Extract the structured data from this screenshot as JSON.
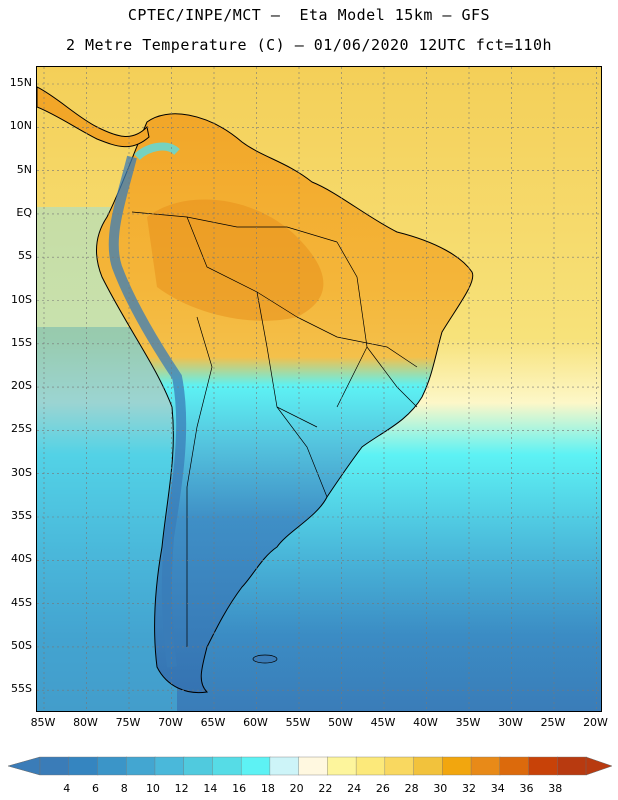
{
  "header": {
    "line1": "CPTEC/INPE/MCT –  Eta Model 15km – GFS",
    "line2": "2 Metre Temperature (C) – 01/06/2020 12UTC fct=110h"
  },
  "map": {
    "lat_ticks": [
      "15N",
      "10N",
      "5N",
      "EQ",
      "5S",
      "10S",
      "15S",
      "20S",
      "25S",
      "30S",
      "35S",
      "40S",
      "45S",
      "50S",
      "55S"
    ],
    "lon_ticks": [
      "85W",
      "80W",
      "75W",
      "70W",
      "65W",
      "60W",
      "55W",
      "50W",
      "45W",
      "40W",
      "35W",
      "30W",
      "25W",
      "20W"
    ]
  },
  "colorbar": {
    "labels": [
      "4",
      "6",
      "8",
      "10",
      "12",
      "14",
      "16",
      "18",
      "20",
      "22",
      "24",
      "26",
      "28",
      "30",
      "32",
      "34",
      "36",
      "38"
    ],
    "colors": [
      "#3a7cb8",
      "#3585c0",
      "#3b95c8",
      "#43a6d1",
      "#4ab8da",
      "#50cade",
      "#56dce6",
      "#5df2f4",
      "#cdf4f8",
      "#fff8e0",
      "#fdf59c",
      "#fce97a",
      "#f9d860",
      "#f2c23c",
      "#f2a60e",
      "#e88a18",
      "#dc6a0c",
      "#c84208",
      "#b83a10"
    ]
  }
}
